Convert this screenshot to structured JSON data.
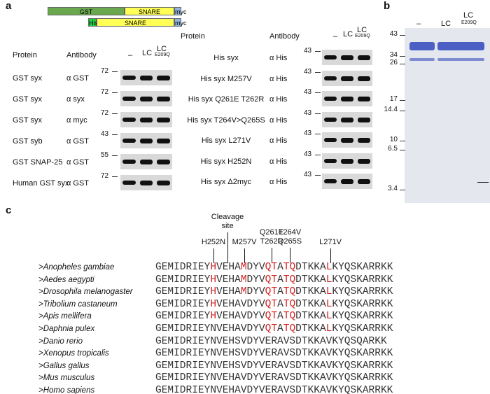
{
  "panel_a": {
    "label": "a",
    "constructs": [
      [
        "GST",
        "SNARE",
        "myc"
      ],
      [
        "His",
        "SNARE",
        "myc"
      ]
    ],
    "left": {
      "headers": [
        "Protein",
        "Antibody"
      ],
      "lanes": [
        "–",
        "LC",
        "LC",
        "E209Q"
      ],
      "rows": [
        {
          "protein": "GST syx",
          "antibody": "α GST",
          "marker": "72"
        },
        {
          "protein": "GST syx",
          "antibody": "α syx",
          "marker": "72"
        },
        {
          "protein": "GST syx",
          "antibody": "α myc",
          "marker": "72"
        },
        {
          "protein": "GST syb",
          "antibody": "α GST",
          "marker": "43"
        },
        {
          "protein": "GST SNAP-25",
          "antibody": "α GST",
          "marker": "55"
        },
        {
          "protein": "Human GST syx",
          "antibody": "α GST",
          "marker": "72"
        }
      ]
    },
    "right": {
      "headers": [
        "Protein",
        "Antibody"
      ],
      "lanes": [
        "–",
        "LC",
        "LC",
        "E209Q"
      ],
      "rows": [
        {
          "protein": "His syx",
          "antibody": "α His",
          "marker": "43"
        },
        {
          "protein": "His syx M257V",
          "antibody": "α His",
          "marker": "43"
        },
        {
          "protein": "His syx Q261E T262R",
          "antibody": "α His",
          "marker": "43"
        },
        {
          "protein": "His syx T264V>Q265S",
          "antibody": "α His",
          "marker": "43"
        },
        {
          "protein": "His syx L271V",
          "antibody": "α His",
          "marker": "43"
        },
        {
          "protein": "His syx H252N",
          "antibody": "α His",
          "marker": "43"
        },
        {
          "protein": "His syx Δ2myc",
          "antibody": "α His",
          "marker": "43"
        }
      ]
    }
  },
  "panel_b": {
    "label": "b",
    "lanes": [
      "–",
      "LC",
      "LC",
      "E209Q"
    ],
    "markers": [
      "43",
      "34",
      "26",
      "17",
      "14.4",
      "10",
      "6.5",
      "3.4"
    ]
  },
  "panel_c": {
    "label": "c",
    "mutations": [
      [
        "H252N"
      ],
      [
        "Cleavage",
        "site"
      ],
      [
        "M257V"
      ],
      [
        "Q261E",
        "T262R"
      ],
      [
        "T264V",
        "Q265S"
      ],
      [
        "L271V"
      ]
    ],
    "rows": [
      {
        "species": ">Anopheles gambiae",
        "sequence": [
          "GEMIDRIEY",
          "H",
          "VEHA",
          "M",
          "DYV",
          "QT",
          "A",
          "TQ",
          "DTKKA",
          "L",
          "KYQSKARRKK"
        ]
      },
      {
        "species": ">Aedes aegypti",
        "sequence": [
          "GEMIDRIEY",
          "H",
          "VEHA",
          "M",
          "DYV",
          "QT",
          "A",
          "TQ",
          "DTKKA",
          "L",
          "KYQSKARRKK"
        ]
      },
      {
        "species": ">Drosophila melanogaster",
        "sequence": [
          "GEMIDRIEY",
          "H",
          "VEHA",
          "M",
          "DYV",
          "QT",
          "A",
          "TQ",
          "DTKKA",
          "L",
          "KYQSKARRKK"
        ]
      },
      {
        "species": ">Tribolium castaneum",
        "sequence": [
          "GEMIDRIEY",
          "H",
          "VEHAVDYV",
          "QT",
          "A",
          "TQ",
          "DTKKA",
          "L",
          "KYQSKARRKK"
        ]
      },
      {
        "species": ">Apis mellifera",
        "sequence": [
          "GEMIDRIEY",
          "H",
          "VEHAVDYV",
          "QT",
          "A",
          "TQ",
          "DTKKA",
          "L",
          "KYQSKARRKK"
        ]
      },
      {
        "species": ">Daphnia pulex",
        "sequence": [
          "GEMIDRIEYNVEHAVDYV",
          "QT",
          "A",
          "TQ",
          "DTKKA",
          "L",
          "KYQSKARRKK"
        ]
      },
      {
        "species": ">Danio rerio",
        "sequence": [
          "GEMIDRIEYNVEHSVDYVERAVSDTKKAVKYQSQARKK"
        ]
      },
      {
        "species": ">Xenopus tropicalis",
        "sequence": [
          "GEMIDRIEYNVEHSVDYVERAVSDTKKAVKYQSKARRKK"
        ]
      },
      {
        "species": ">Gallus gallus",
        "sequence": [
          "GEMIDRIEYNVEHSVDYVERAVSDTKKAVKYQSKARRKK"
        ]
      },
      {
        "species": ">Mus musculus",
        "sequence": [
          "GEMIDRIEYNVEHAVDYVERAVSDTKKAVKYQSKARRKK"
        ]
      },
      {
        "species": ">Homo sapiens",
        "sequence": [
          "GEMIDRIEYNVEHAVDYVERAVSDTKKAVKYQSKARRKK"
        ]
      }
    ]
  }
}
